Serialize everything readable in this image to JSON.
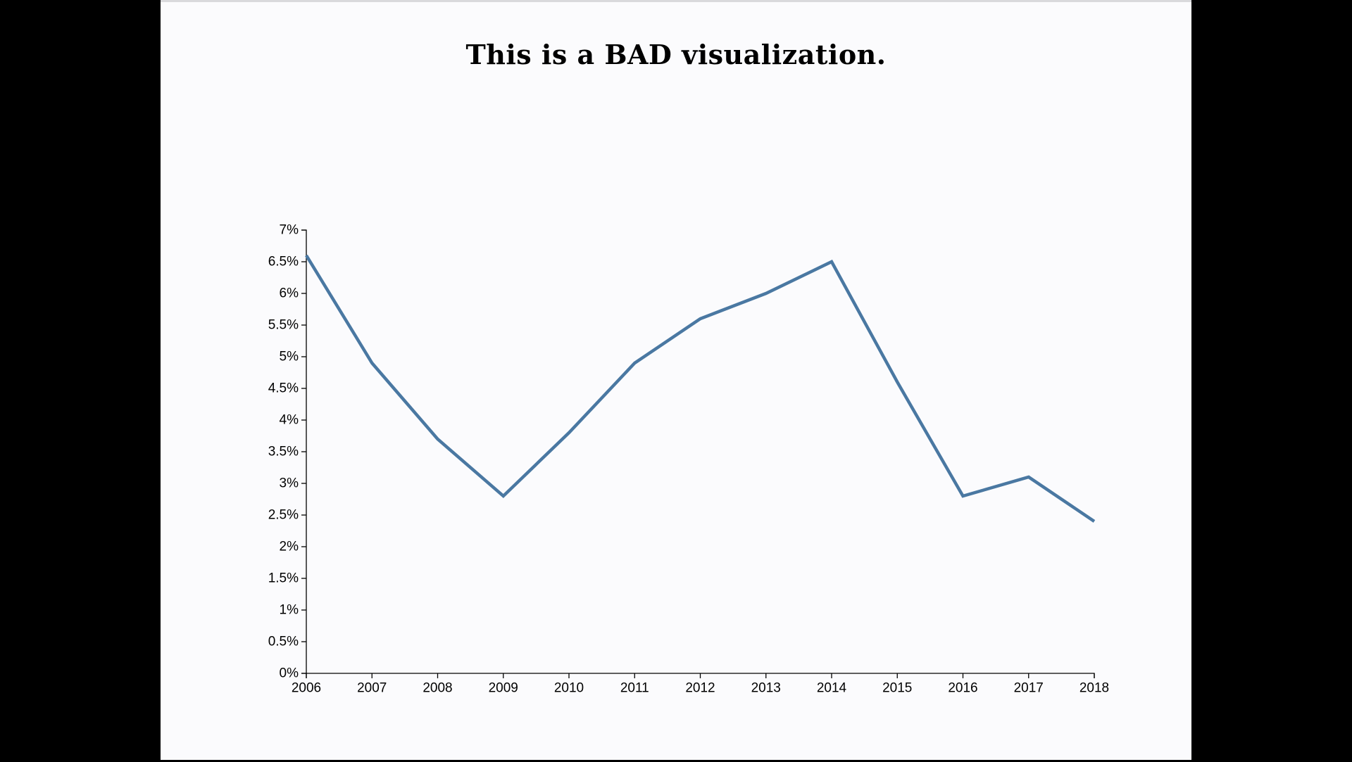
{
  "chart_data": {
    "type": "line",
    "title": "This is a BAD visualization.",
    "xlabel": "",
    "ylabel": "",
    "x": [
      "2006",
      "2007",
      "2008",
      "2009",
      "2010",
      "2011",
      "2012",
      "2013",
      "2014",
      "2015",
      "2016",
      "2017",
      "2018"
    ],
    "series": [
      {
        "values": [
          6.6,
          4.9,
          3.7,
          2.8,
          3.8,
          4.9,
          5.6,
          6.0,
          6.5,
          4.6,
          2.8,
          3.1,
          2.4
        ]
      }
    ],
    "y_ticks": [
      "0%",
      "0.5%",
      "1%",
      "1.5%",
      "2%",
      "2.5%",
      "3%",
      "3.5%",
      "4%",
      "4.5%",
      "5%",
      "5.5%",
      "6%",
      "6.5%",
      "7%"
    ],
    "ylim": [
      0,
      7
    ],
    "grid": false,
    "line_color": "#4a78a2"
  }
}
